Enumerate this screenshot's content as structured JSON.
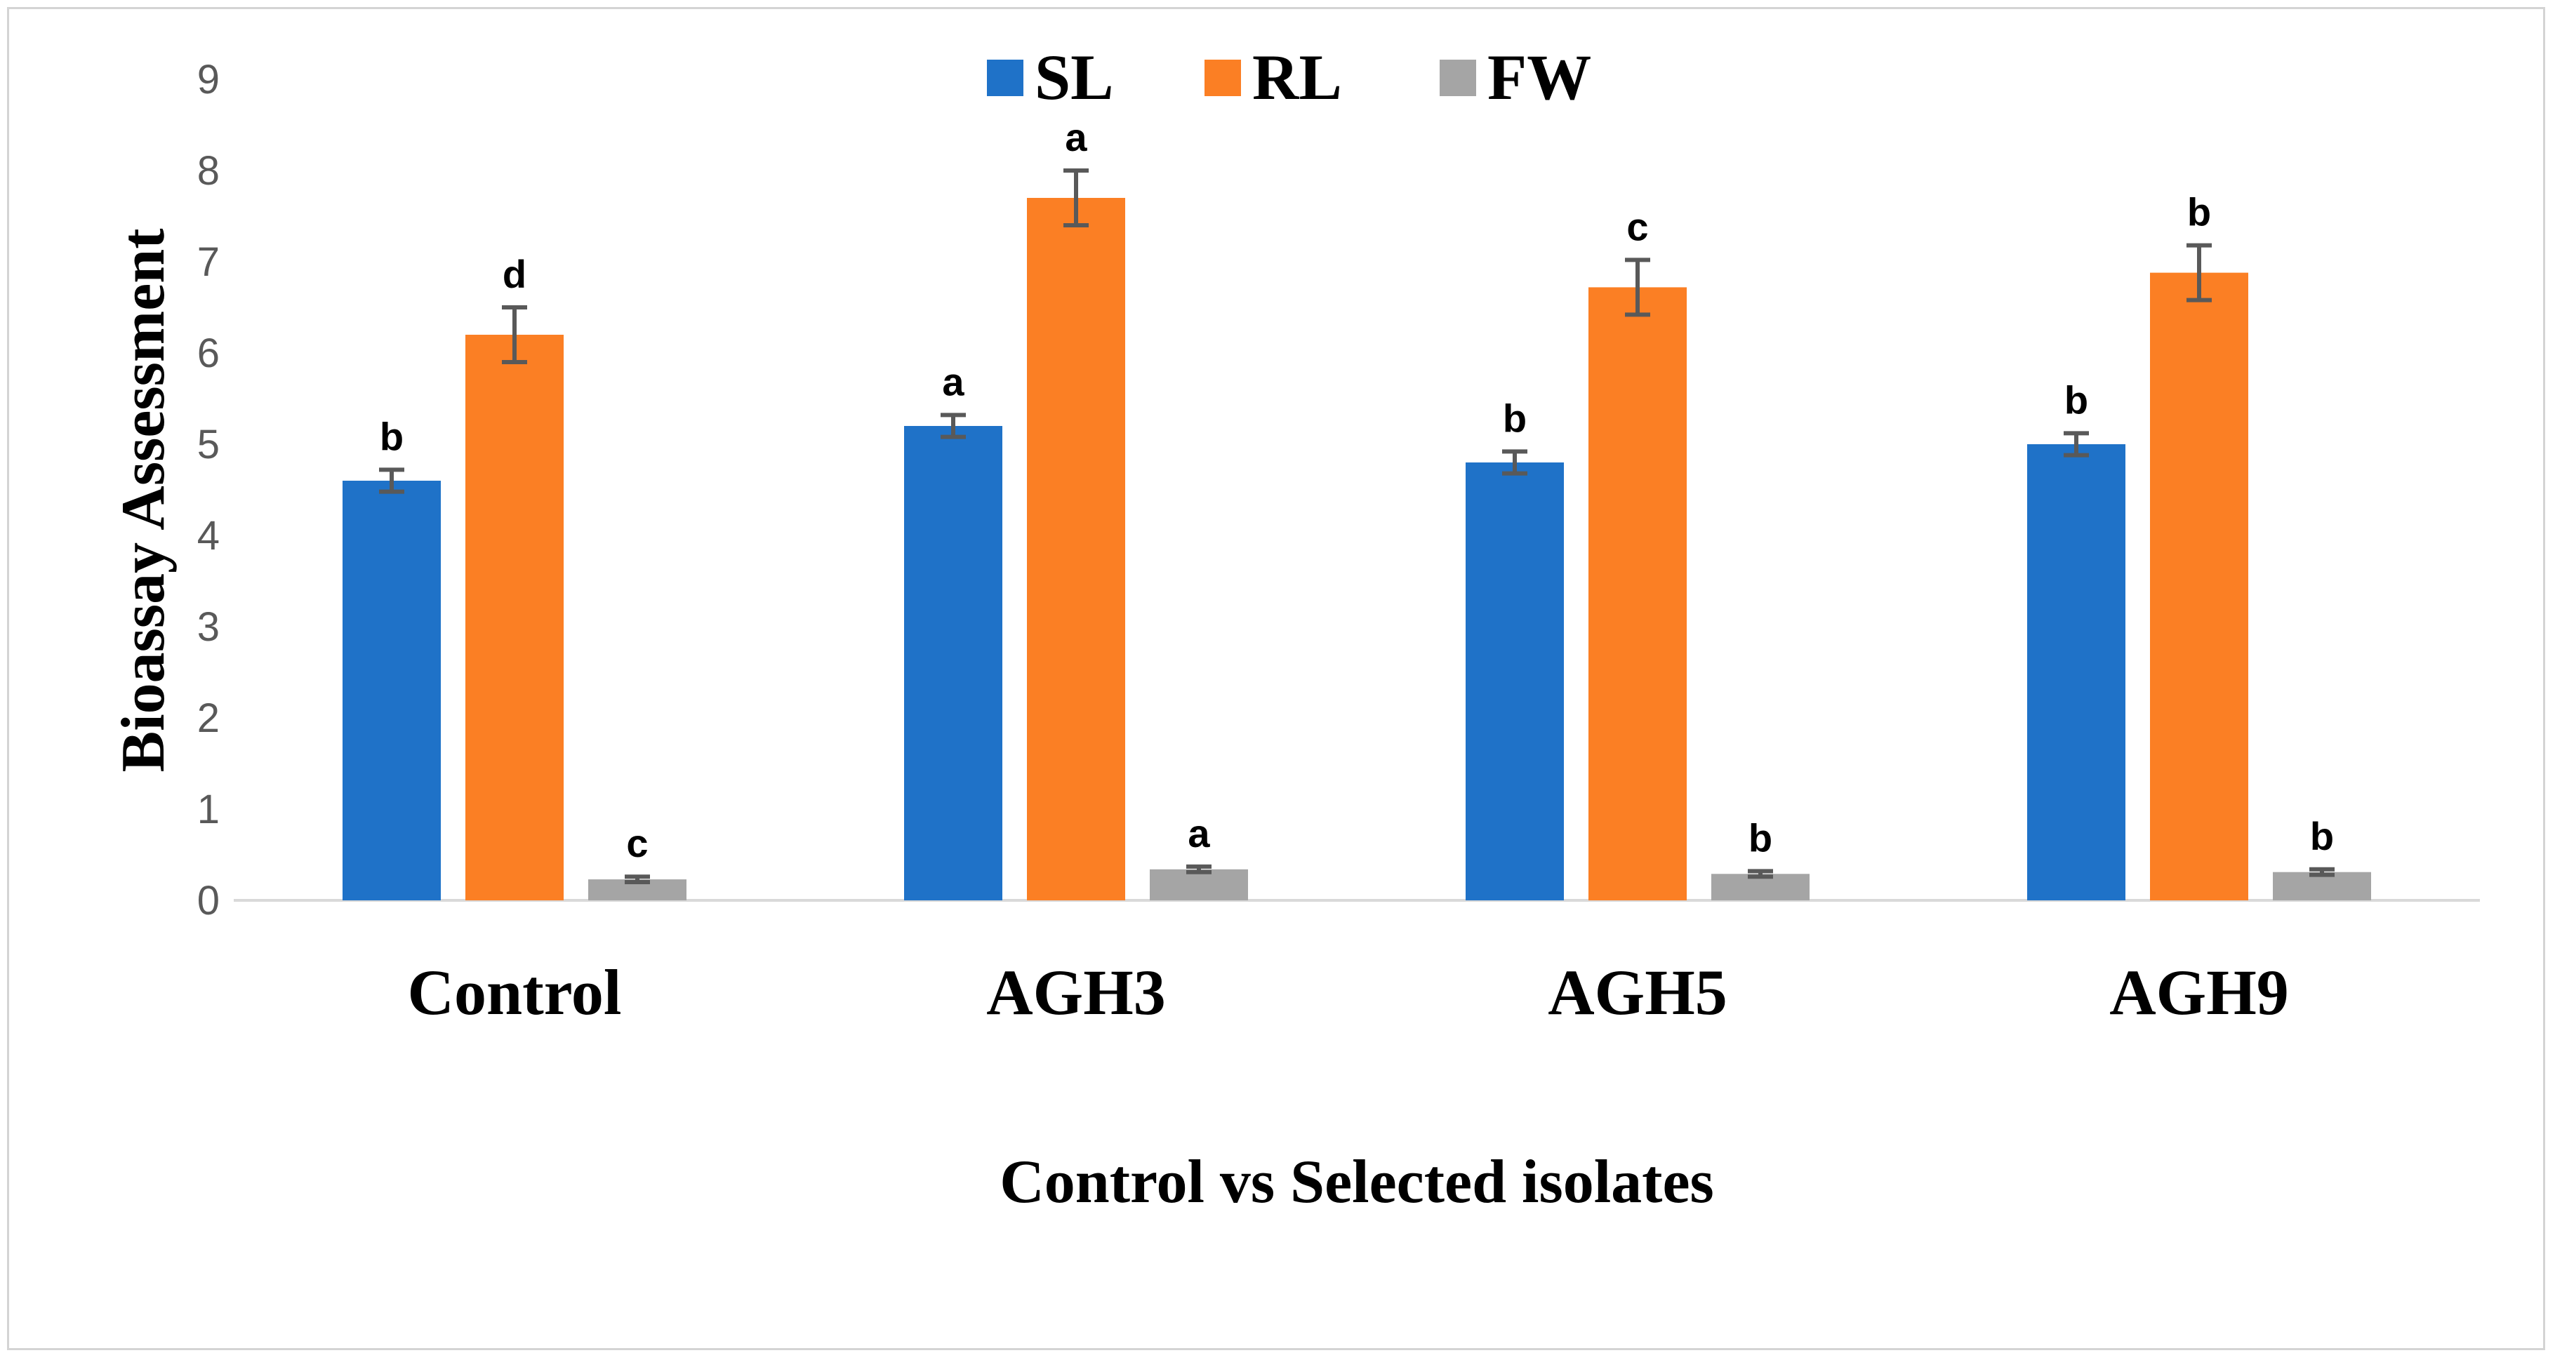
{
  "chart_data": {
    "type": "bar",
    "title": "",
    "xlabel": "Control vs Selected isolates",
    "ylabel": "Bioassay Assessment",
    "ylim": [
      0,
      9
    ],
    "yticks": [
      0,
      1,
      2,
      3,
      4,
      5,
      6,
      7,
      8,
      9
    ],
    "grid": false,
    "legend_position": "top-center",
    "categories": [
      "Control",
      "AGH3",
      "AGH5",
      "AGH9"
    ],
    "series": [
      {
        "name": "SL",
        "color": "#1f72c8",
        "values": [
          4.6,
          5.2,
          4.8,
          5.0
        ],
        "errors": [
          0.12,
          0.12,
          0.12,
          0.12
        ],
        "labels": [
          "b",
          "a",
          "b",
          "b"
        ]
      },
      {
        "name": "RL",
        "color": "#fb7f24",
        "values": [
          6.2,
          7.7,
          6.72,
          6.88
        ],
        "errors": [
          0.3,
          0.3,
          0.3,
          0.3
        ],
        "labels": [
          "d",
          "a",
          "c",
          "b"
        ]
      },
      {
        "name": "FW",
        "color": "#a5a5a5",
        "values": [
          0.23,
          0.34,
          0.29,
          0.31
        ],
        "errors": [
          0.03,
          0.03,
          0.03,
          0.03
        ],
        "labels": [
          "c",
          "a",
          "b",
          "b"
        ]
      }
    ]
  }
}
